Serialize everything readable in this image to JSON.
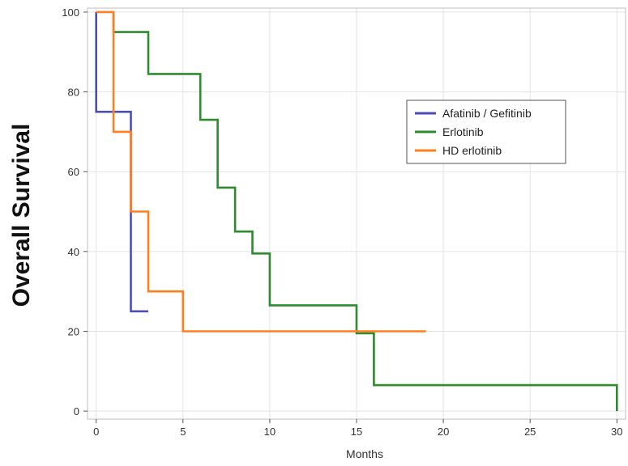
{
  "chart_data": {
    "type": "line",
    "step": true,
    "title": "",
    "xlabel": "Months",
    "ylabel": "Overall Survival",
    "xlim": [
      -0.5,
      30.5
    ],
    "ylim": [
      -2,
      101
    ],
    "xticks": [
      0,
      5,
      10,
      15,
      20,
      25,
      30
    ],
    "yticks": [
      0,
      20,
      40,
      60,
      80,
      100
    ],
    "grid": true,
    "legend_position": "top-right",
    "series": [
      {
        "name": "Afatinib / Gefitinib",
        "color": "#4b4fb5",
        "points": [
          [
            0,
            100
          ],
          [
            0,
            75
          ],
          [
            2,
            75
          ],
          [
            2,
            25
          ],
          [
            3,
            25
          ]
        ]
      },
      {
        "name": "Erlotinib",
        "color": "#2e8b2e",
        "points": [
          [
            1,
            100
          ],
          [
            1,
            95
          ],
          [
            3,
            95
          ],
          [
            3,
            84.5
          ],
          [
            6,
            84.5
          ],
          [
            6,
            73
          ],
          [
            7,
            73
          ],
          [
            7,
            56
          ],
          [
            8,
            56
          ],
          [
            8,
            45
          ],
          [
            9,
            45
          ],
          [
            9,
            39.5
          ],
          [
            10,
            39.5
          ],
          [
            10,
            26.5
          ],
          [
            15,
            26.5
          ],
          [
            15,
            19.5
          ],
          [
            16,
            19.5
          ],
          [
            16,
            6.5
          ],
          [
            30,
            6.5
          ],
          [
            30,
            0
          ]
        ]
      },
      {
        "name": "HD erlotinib",
        "color": "#ff7f1f",
        "points": [
          [
            0,
            100
          ],
          [
            1,
            100
          ],
          [
            1,
            70
          ],
          [
            2,
            70
          ],
          [
            2,
            50
          ],
          [
            3,
            50
          ],
          [
            3,
            30
          ],
          [
            5,
            30
          ],
          [
            5,
            20
          ],
          [
            19,
            20
          ]
        ]
      }
    ]
  }
}
